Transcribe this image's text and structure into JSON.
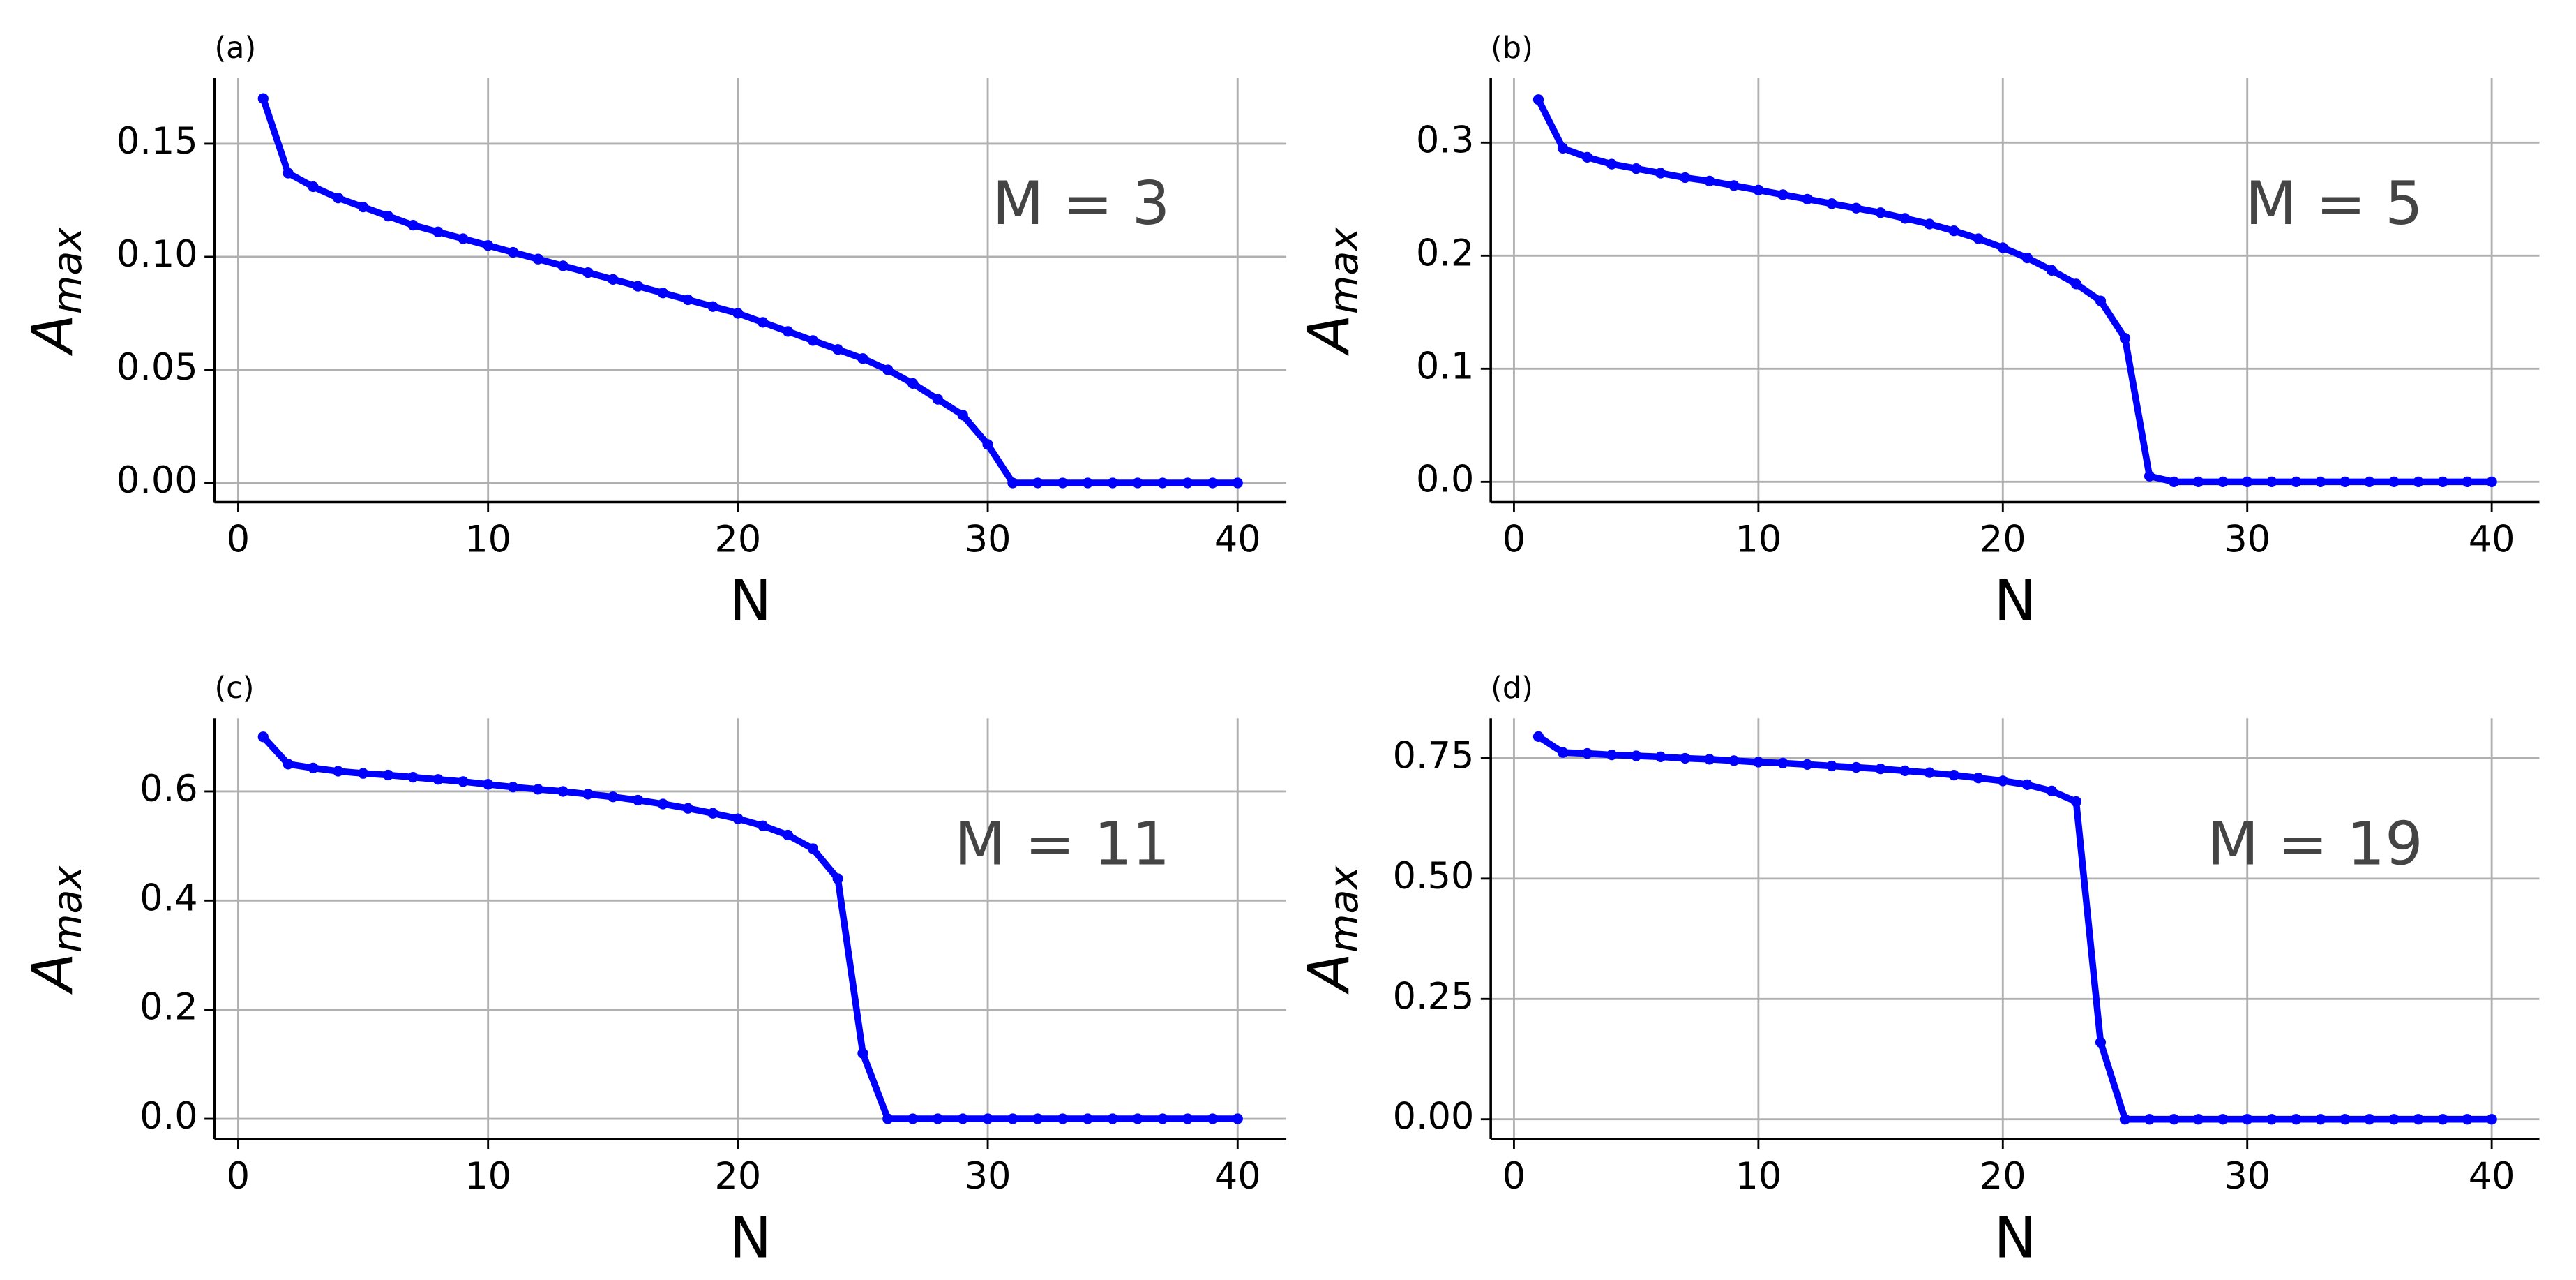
{
  "chart_data": [
    {
      "type": "line",
      "panel_label": "(a)",
      "annotation": "M = 3",
      "xlabel": "N",
      "ylabel": "A",
      "ylabel_sub": "max",
      "color": "#0000ff",
      "grid": true,
      "x": [
        1,
        2,
        3,
        4,
        5,
        6,
        7,
        8,
        9,
        10,
        11,
        12,
        13,
        14,
        15,
        16,
        17,
        18,
        19,
        20,
        21,
        22,
        23,
        24,
        25,
        26,
        27,
        28,
        29,
        30,
        31,
        32,
        33,
        34,
        35,
        36,
        37,
        38,
        39,
        40
      ],
      "values": [
        0.17,
        0.137,
        0.131,
        0.126,
        0.122,
        0.118,
        0.114,
        0.111,
        0.108,
        0.105,
        0.102,
        0.099,
        0.096,
        0.093,
        0.09,
        0.087,
        0.084,
        0.081,
        0.078,
        0.075,
        0.071,
        0.067,
        0.063,
        0.059,
        0.055,
        0.05,
        0.044,
        0.037,
        0.03,
        0.017,
        0,
        0,
        0,
        0,
        0,
        0,
        0,
        0,
        0,
        0
      ],
      "xlim": [
        -0.95,
        41.95
      ],
      "xticks": [
        0,
        10,
        20,
        30,
        40
      ],
      "ylim": [
        -0.0085,
        0.179
      ],
      "yticks": [
        {
          "value": 0,
          "label": "0.00"
        },
        {
          "value": 0.05,
          "label": "0.05"
        },
        {
          "value": 0.1,
          "label": "0.10"
        },
        {
          "value": 0.15,
          "label": "0.15"
        }
      ]
    },
    {
      "type": "line",
      "panel_label": "(b)",
      "annotation": "M = 5",
      "xlabel": "N",
      "ylabel": "A",
      "ylabel_sub": "max",
      "color": "#0000ff",
      "grid": true,
      "x": [
        1,
        2,
        3,
        4,
        5,
        6,
        7,
        8,
        9,
        10,
        11,
        12,
        13,
        14,
        15,
        16,
        17,
        18,
        19,
        20,
        21,
        22,
        23,
        24,
        25,
        26,
        27,
        28,
        29,
        30,
        31,
        32,
        33,
        34,
        35,
        36,
        37,
        38,
        39,
        40
      ],
      "values": [
        0.338,
        0.295,
        0.287,
        0.281,
        0.277,
        0.273,
        0.269,
        0.266,
        0.262,
        0.258,
        0.254,
        0.25,
        0.246,
        0.242,
        0.238,
        0.233,
        0.228,
        0.222,
        0.215,
        0.207,
        0.198,
        0.187,
        0.175,
        0.16,
        0.127,
        0.005,
        0,
        0,
        0,
        0,
        0,
        0,
        0,
        0,
        0,
        0,
        0,
        0,
        0,
        0
      ],
      "xlim": [
        -0.95,
        41.95
      ],
      "xticks": [
        0,
        10,
        20,
        30,
        40
      ],
      "ylim": [
        -0.018,
        0.357
      ],
      "yticks": [
        {
          "value": 0,
          "label": "0.0"
        },
        0.1,
        0.2,
        0.3
      ]
    },
    {
      "type": "line",
      "panel_label": "(c)",
      "annotation": "M = 11",
      "xlabel": "N",
      "ylabel": "A",
      "ylabel_sub": "max",
      "color": "#0000ff",
      "grid": true,
      "x": [
        1,
        2,
        3,
        4,
        5,
        6,
        7,
        8,
        9,
        10,
        11,
        12,
        13,
        14,
        15,
        16,
        17,
        18,
        19,
        20,
        21,
        22,
        23,
        24,
        25,
        26,
        27,
        28,
        29,
        30,
        31,
        32,
        33,
        34,
        35,
        36,
        37,
        38,
        39,
        40
      ],
      "values": [
        0.7,
        0.65,
        0.643,
        0.637,
        0.633,
        0.63,
        0.626,
        0.622,
        0.618,
        0.613,
        0.608,
        0.604,
        0.6,
        0.595,
        0.59,
        0.584,
        0.577,
        0.569,
        0.56,
        0.55,
        0.537,
        0.52,
        0.495,
        0.44,
        0.12,
        0,
        0,
        0,
        0,
        0,
        0,
        0,
        0,
        0,
        0,
        0,
        0,
        0,
        0,
        0
      ],
      "xlim": [
        -0.95,
        41.95
      ],
      "xticks": [
        0,
        10,
        20,
        30,
        40
      ],
      "ylim": [
        -0.037,
        0.734
      ],
      "yticks": [
        {
          "value": 0,
          "label": "0.0"
        },
        0.2,
        0.4,
        0.6
      ]
    },
    {
      "type": "line",
      "panel_label": "(d)",
      "annotation": "M = 19",
      "xlabel": "N",
      "ylabel": "A",
      "ylabel_sub": "max",
      "color": "#0000ff",
      "grid": true,
      "x": [
        1,
        2,
        3,
        4,
        5,
        6,
        7,
        8,
        9,
        10,
        11,
        12,
        13,
        14,
        15,
        16,
        17,
        18,
        19,
        20,
        21,
        22,
        23,
        24,
        25,
        26,
        27,
        28,
        29,
        30,
        31,
        32,
        33,
        34,
        35,
        36,
        37,
        38,
        39,
        40
      ],
      "values": [
        0.795,
        0.762,
        0.76,
        0.757,
        0.755,
        0.753,
        0.75,
        0.748,
        0.745,
        0.742,
        0.74,
        0.737,
        0.734,
        0.731,
        0.728,
        0.724,
        0.72,
        0.715,
        0.709,
        0.703,
        0.695,
        0.682,
        0.66,
        0.16,
        0,
        0,
        0,
        0,
        0,
        0,
        0,
        0,
        0,
        0,
        0,
        0,
        0,
        0,
        0,
        0
      ],
      "xlim": [
        -0.95,
        41.95
      ],
      "xticks": [
        0,
        10,
        20,
        30,
        40
      ],
      "ylim": [
        -0.041,
        0.833
      ],
      "yticks": [
        {
          "value": 0,
          "label": "0.00"
        },
        {
          "value": 0.25,
          "label": "0.25"
        },
        {
          "value": 0.5,
          "label": "0.50"
        },
        {
          "value": 0.75,
          "label": "0.75"
        }
      ]
    }
  ]
}
